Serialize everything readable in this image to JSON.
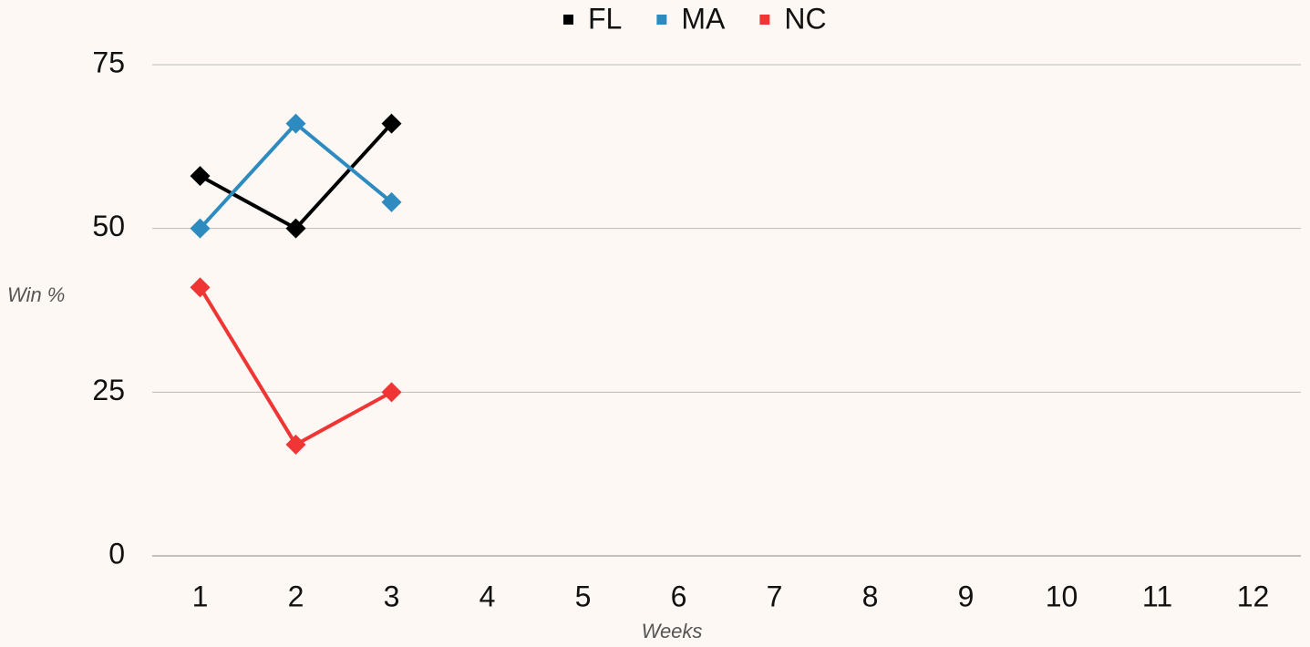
{
  "chart_data": {
    "type": "line",
    "categories": [
      "1",
      "2",
      "3",
      "4",
      "5",
      "6",
      "7",
      "8",
      "9",
      "10",
      "11",
      "12"
    ],
    "series": [
      {
        "name": "FL",
        "color": "#000000",
        "values": [
          58,
          50,
          66,
          null,
          null,
          null,
          null,
          null,
          null,
          null,
          null,
          null
        ]
      },
      {
        "name": "MA",
        "color": "#2e8bc0",
        "values": [
          50,
          66,
          54,
          null,
          null,
          null,
          null,
          null,
          null,
          null,
          null,
          null
        ]
      },
      {
        "name": "NC",
        "color": "#f03535",
        "values": [
          41,
          17,
          25,
          null,
          null,
          null,
          null,
          null,
          null,
          null,
          null,
          null
        ]
      }
    ],
    "xlabel": "Weeks",
    "ylabel": "Win %",
    "ylim": [
      0,
      75
    ],
    "yticks": [
      0,
      25,
      50,
      75
    ],
    "grid": true,
    "legend": "top"
  }
}
